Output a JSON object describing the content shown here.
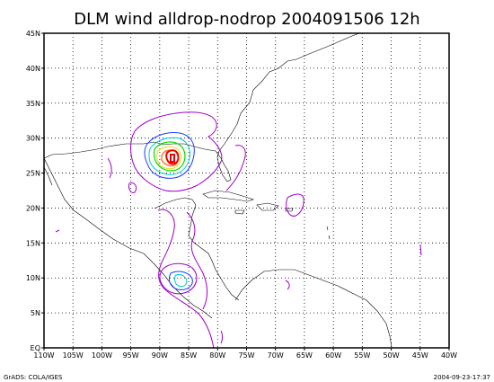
{
  "title": "DLM wind alldrop-nodrop 2004091506 12h",
  "footer_left": "GrADS: COLA/IGES",
  "footer_right": "2004-09-23-17:37",
  "lon_range": [
    -110,
    -40
  ],
  "lat_range": [
    0,
    45
  ],
  "x_tick_labels": [
    "110W",
    "105W",
    "100W",
    "95W",
    "90W",
    "85W",
    "80W",
    "75W",
    "70W",
    "65W",
    "60W",
    "55W",
    "50W",
    "45W",
    "40W"
  ],
  "y_tick_labels": [
    "EQ",
    "5N",
    "10N",
    "15N",
    "20N",
    "25N",
    "30N",
    "35N",
    "40N",
    "45N"
  ],
  "contour_colors": {
    "purple": "#a000c8",
    "blue": "#1e3cff",
    "teal": "#00c8c8",
    "green": "#00dc00",
    "yellow": "#e6dc32",
    "orange": "#f0821e",
    "red": "#f00000"
  }
}
